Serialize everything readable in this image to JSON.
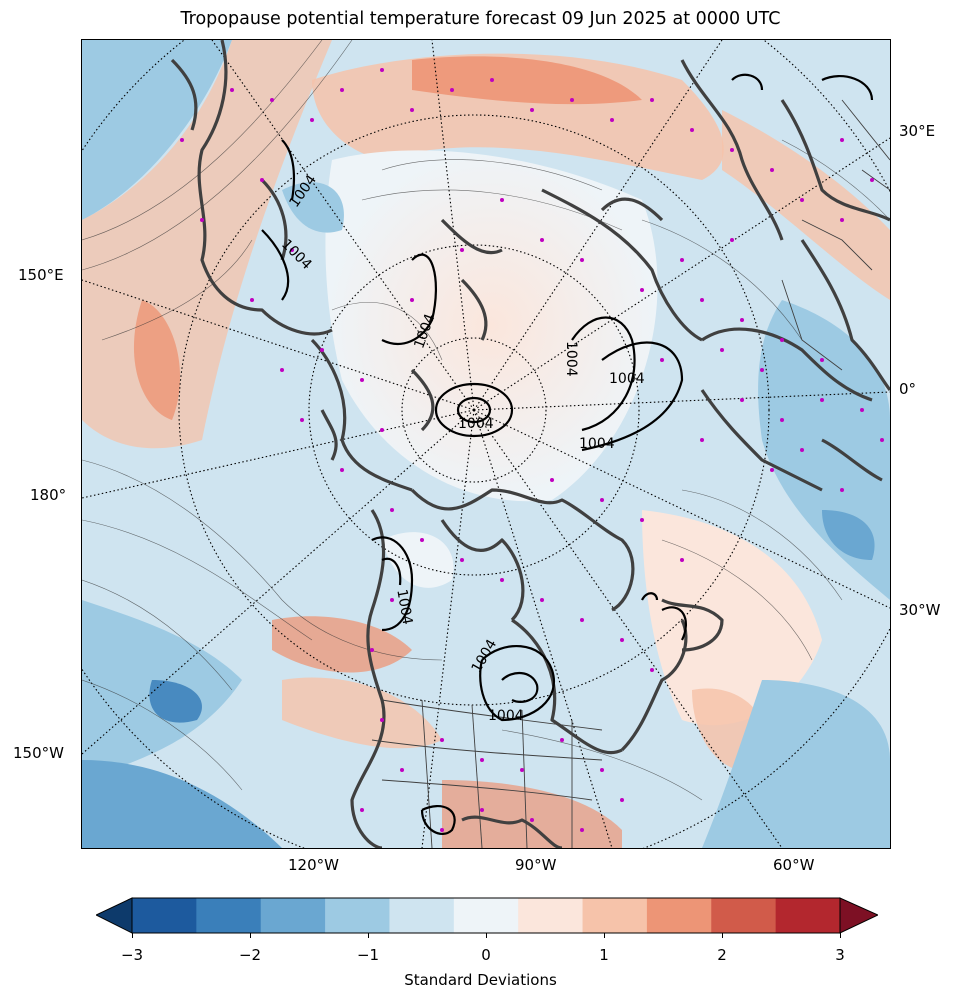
{
  "title": "Tropopause potential temperature forecast 09 Jun 2025 at 0000 UTC",
  "longitude_labels": {
    "left": [
      "150°E",
      "180°",
      "150°W"
    ],
    "right": [
      "30°E",
      "0°",
      "30°W"
    ],
    "bottom": [
      "120°W",
      "90°W",
      "60°W"
    ]
  },
  "isobar_labels": [
    "1004",
    "1004",
    "1004",
    "1004",
    "1004",
    "1004",
    "1004",
    "1004",
    "1004",
    "1004"
  ],
  "colorbar": {
    "label": "Standard Deviations",
    "ticks": [
      "−3",
      "−2",
      "−1",
      "0",
      "1",
      "2",
      "3"
    ],
    "range": [
      -3,
      3
    ],
    "colors": [
      "#0d3a6b",
      "#1d5a9e",
      "#3a7fba",
      "#6aa7d1",
      "#9dcae3",
      "#cfe4f0",
      "#eef4f8",
      "#fbe6dc",
      "#f6c3aa",
      "#ed9576",
      "#d15b4a",
      "#b3272e",
      "#7d1024"
    ],
    "extend": "both"
  },
  "colors": {
    "coastline": "#404040",
    "isobar": "#000000",
    "station_marker": "#c000c0",
    "graticule": "#000000"
  }
}
